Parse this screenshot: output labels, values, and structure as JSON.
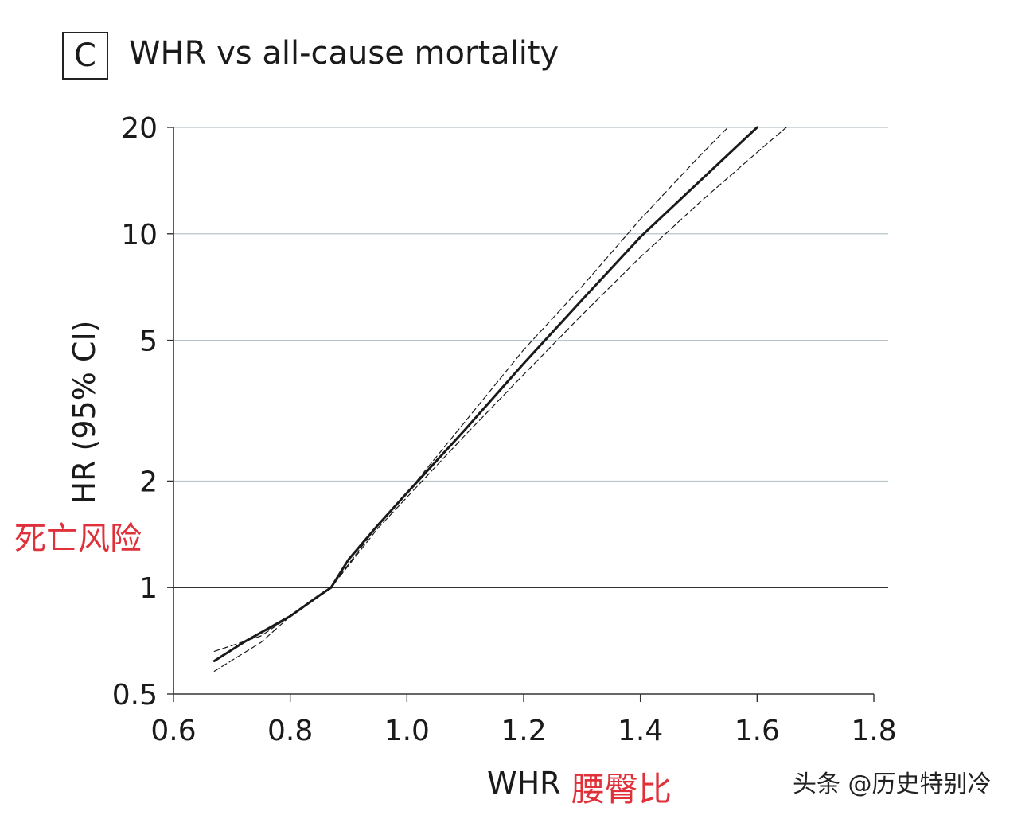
{
  "panel_label": "C",
  "watermark": "头条 @历史特别冷",
  "chart_data": {
    "type": "line",
    "title": "WHR vs all-cause mortality",
    "xlabel": "WHR",
    "xlabel_cn": "腰臀比",
    "ylabel": "HR (95% CI)",
    "ylabel_cn": "死亡风险",
    "x_ticks": [
      0.6,
      0.8,
      1.0,
      1.2,
      1.4,
      1.6,
      1.8
    ],
    "x_tick_labels": [
      "0.6",
      "0.8",
      "1.0",
      "1.2",
      "1.4",
      "1.6",
      "1.8"
    ],
    "y_ticks": [
      0.5,
      1,
      2,
      5,
      10,
      20
    ],
    "y_tick_labels": [
      "0.5",
      "1",
      "2",
      "5",
      "10",
      "20"
    ],
    "xlim": [
      0.6,
      1.8
    ],
    "ylim": [
      0.5,
      20
    ],
    "y_scale": "log",
    "grid": "horizontal",
    "reference_line_y": 1,
    "series": [
      {
        "role": "estimate",
        "style": "solid",
        "x": [
          0.67,
          0.72,
          0.8,
          0.85,
          0.87,
          0.9,
          0.95,
          1.0,
          1.1,
          1.2,
          1.3,
          1.4,
          1.5,
          1.6
        ],
        "y": [
          0.62,
          0.7,
          0.83,
          0.95,
          1.0,
          1.2,
          1.5,
          1.85,
          2.8,
          4.3,
          6.5,
          9.8,
          14.0,
          20.0
        ]
      },
      {
        "role": "upper",
        "style": "dashed",
        "x": [
          0.67,
          0.75,
          0.8,
          0.87,
          0.95,
          1.0,
          1.1,
          1.2,
          1.3,
          1.4,
          1.5,
          1.55
        ],
        "y": [
          0.66,
          0.73,
          0.83,
          1.0,
          1.5,
          1.85,
          2.95,
          4.7,
          7.1,
          11.0,
          16.5,
          20.0
        ]
      },
      {
        "role": "lower",
        "style": "dashed",
        "x": [
          0.67,
          0.75,
          0.8,
          0.87,
          0.95,
          1.0,
          1.1,
          1.2,
          1.3,
          1.4,
          1.5,
          1.6,
          1.65
        ],
        "y": [
          0.58,
          0.7,
          0.83,
          1.0,
          1.47,
          1.8,
          2.7,
          4.0,
          5.9,
          8.6,
          12.2,
          17.0,
          20.0
        ]
      }
    ],
    "colors": {
      "line": "#1a1a1a",
      "grid": "#b8c4c9",
      "reference": "#333333",
      "axis": "#333333",
      "annotation_cn": "#e0303a"
    }
  }
}
